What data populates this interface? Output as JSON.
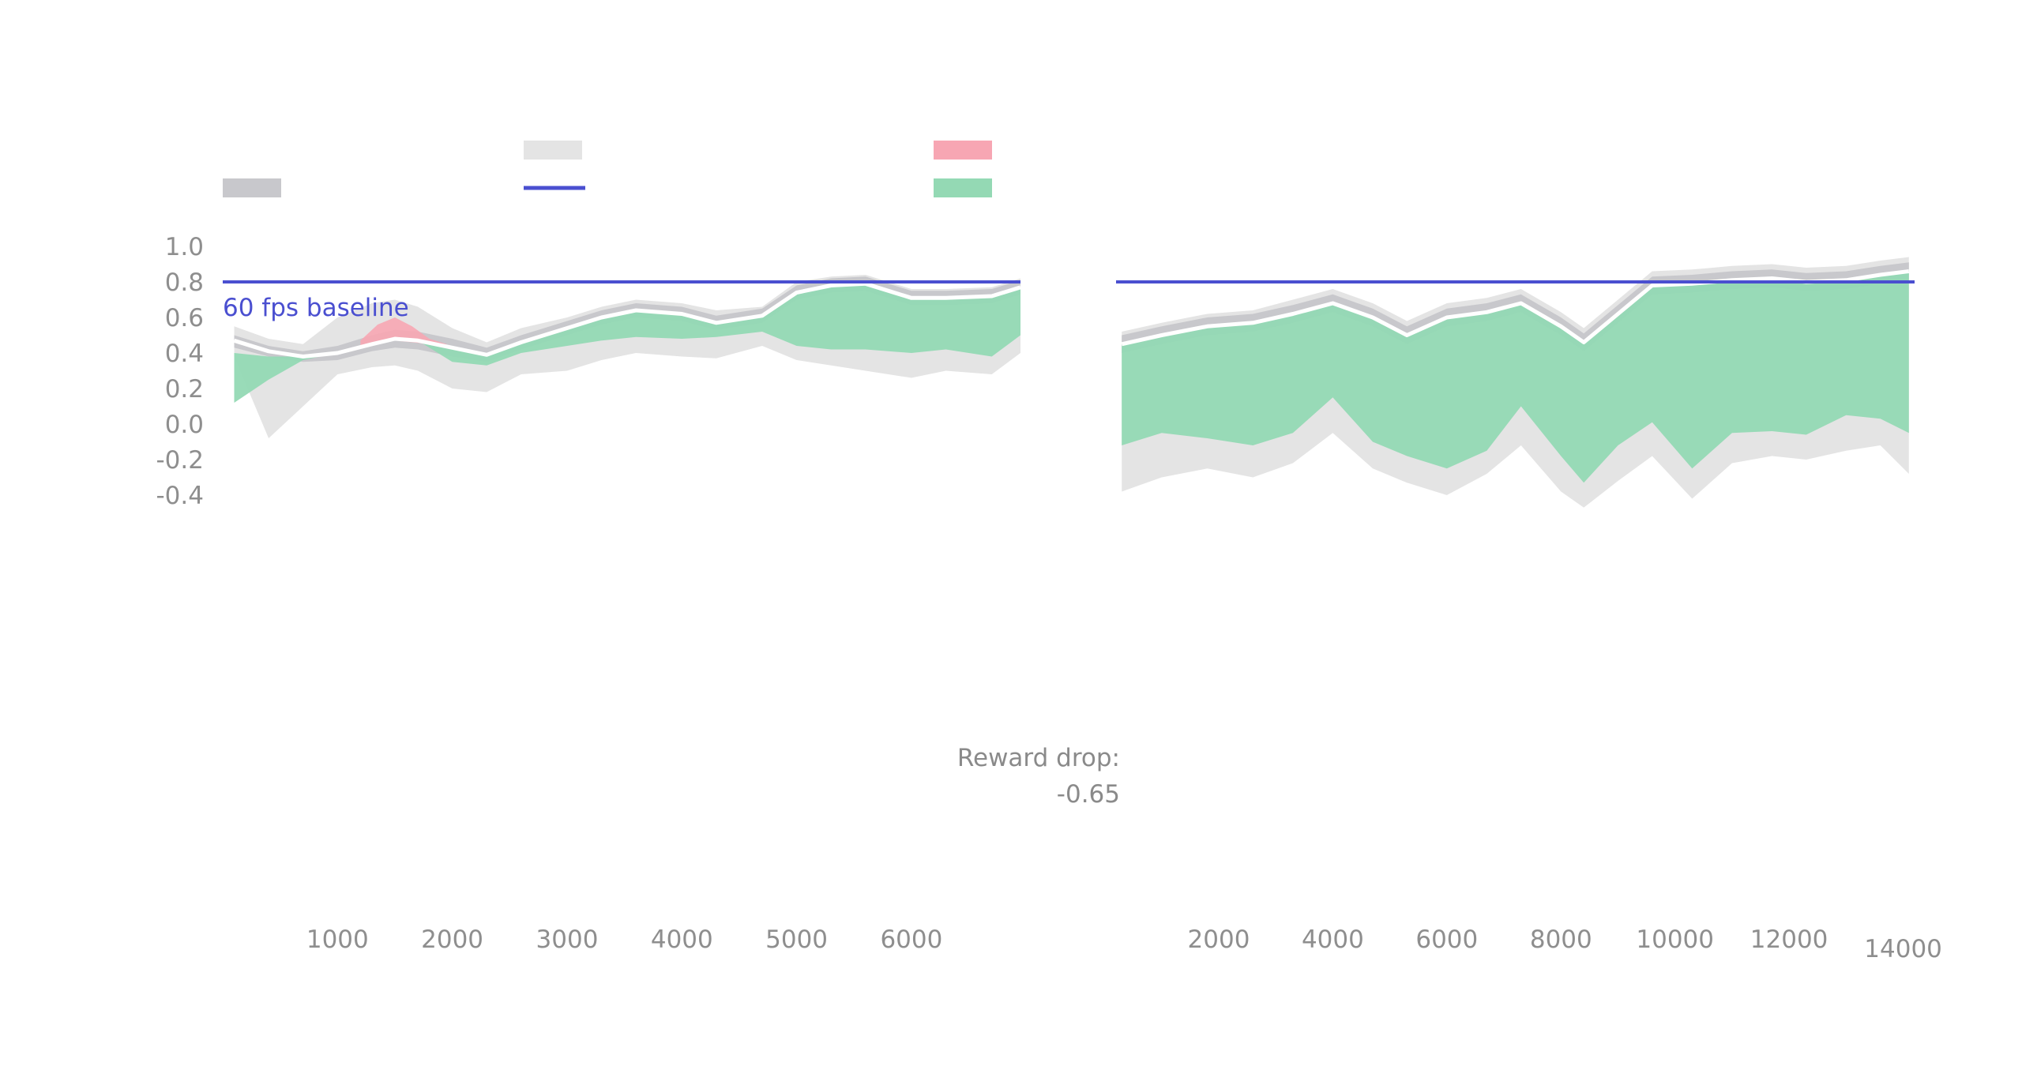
{
  "chart_data": [
    {
      "type": "area",
      "panel": "left",
      "xlim": [
        0,
        6950
      ],
      "ylim": [
        -0.5,
        1.0
      ],
      "x_ticks": [
        1000,
        2000,
        3000,
        4000,
        5000,
        6000
      ],
      "y_ticks": [
        1.0,
        0.8,
        0.6,
        0.4,
        0.2,
        0.0,
        -0.2,
        -0.4
      ],
      "baseline": {
        "label": "60 fps baseline",
        "value": 0.8,
        "color": "#4a4fd0"
      },
      "inline_label": "Rewa",
      "x": [
        100,
        400,
        700,
        1000,
        1300,
        1500,
        1700,
        2000,
        2300,
        2600,
        3000,
        3300,
        3600,
        4000,
        4300,
        4700,
        5000,
        5300,
        5600,
        6000,
        6300,
        6700,
        6950
      ],
      "mean": [
        0.47,
        0.41,
        0.38,
        0.4,
        0.45,
        0.48,
        0.47,
        0.43,
        0.39,
        0.46,
        0.54,
        0.6,
        0.64,
        0.62,
        0.57,
        0.61,
        0.74,
        0.78,
        0.79,
        0.71,
        0.71,
        0.72,
        0.77
      ],
      "band_inner": [
        [
          0.43,
          0.5
        ],
        [
          0.38,
          0.44
        ],
        [
          0.35,
          0.41
        ],
        [
          0.36,
          0.44
        ],
        [
          0.41,
          0.5
        ],
        [
          0.43,
          0.53
        ],
        [
          0.42,
          0.52
        ],
        [
          0.38,
          0.48
        ],
        [
          0.35,
          0.43
        ],
        [
          0.42,
          0.5
        ],
        [
          0.5,
          0.58
        ],
        [
          0.56,
          0.64
        ],
        [
          0.6,
          0.68
        ],
        [
          0.58,
          0.66
        ],
        [
          0.53,
          0.61
        ],
        [
          0.57,
          0.65
        ],
        [
          0.7,
          0.78
        ],
        [
          0.74,
          0.82
        ],
        [
          0.75,
          0.83
        ],
        [
          0.67,
          0.75
        ],
        [
          0.67,
          0.75
        ],
        [
          0.68,
          0.76
        ],
        [
          0.73,
          0.81
        ]
      ],
      "band_outer": [
        [
          0.38,
          0.55
        ],
        [
          -0.08,
          0.48
        ],
        [
          0.1,
          0.45
        ],
        [
          0.28,
          0.6
        ],
        [
          0.32,
          0.68
        ],
        [
          0.33,
          0.7
        ],
        [
          0.3,
          0.66
        ],
        [
          0.2,
          0.54
        ],
        [
          0.18,
          0.46
        ],
        [
          0.28,
          0.54
        ],
        [
          0.3,
          0.6
        ],
        [
          0.36,
          0.66
        ],
        [
          0.4,
          0.7
        ],
        [
          0.38,
          0.68
        ],
        [
          0.37,
          0.64
        ],
        [
          0.44,
          0.66
        ],
        [
          0.36,
          0.8
        ],
        [
          0.33,
          0.83
        ],
        [
          0.3,
          0.84
        ],
        [
          0.26,
          0.76
        ],
        [
          0.3,
          0.76
        ],
        [
          0.28,
          0.77
        ],
        [
          0.4,
          0.82
        ]
      ],
      "improvement": [
        [
          0.12,
          0.4
        ],
        [
          0.25,
          0.38
        ],
        [
          0.36,
          0.38
        ],
        [
          0.4,
          0.4
        ],
        [
          0.45,
          0.45
        ],
        [
          0.48,
          0.48
        ],
        [
          0.47,
          0.47
        ],
        [
          0.35,
          0.43
        ],
        [
          0.33,
          0.39
        ],
        [
          0.4,
          0.46
        ],
        [
          0.44,
          0.54
        ],
        [
          0.47,
          0.6
        ],
        [
          0.49,
          0.64
        ],
        [
          0.48,
          0.62
        ],
        [
          0.49,
          0.57
        ],
        [
          0.52,
          0.61
        ],
        [
          0.44,
          0.74
        ],
        [
          0.42,
          0.78
        ],
        [
          0.42,
          0.79
        ],
        [
          0.4,
          0.71
        ],
        [
          0.42,
          0.71
        ],
        [
          0.38,
          0.72
        ],
        [
          0.5,
          0.77
        ]
      ],
      "regression_x": [
        1200,
        1350,
        1500,
        1650,
        1800,
        1950
      ],
      "regression": [
        [
          0.44,
          0.47
        ],
        [
          0.45,
          0.56
        ],
        [
          0.47,
          0.6
        ],
        [
          0.46,
          0.55
        ],
        [
          0.45,
          0.48
        ],
        [
          0.44,
          0.45
        ]
      ]
    },
    {
      "type": "area",
      "panel": "right",
      "xlim": [
        200,
        14200
      ],
      "ylim": [
        -0.5,
        1.0
      ],
      "x_ticks": [
        2000,
        4000,
        6000,
        8000,
        10000,
        12000,
        14000
      ],
      "baseline": {
        "value": 0.8,
        "color": "#4a4fd0"
      },
      "annotation": {
        "label": "Reward drop:",
        "value": "-0.65"
      },
      "x": [
        300,
        1000,
        1800,
        2600,
        3300,
        4000,
        4700,
        5300,
        6000,
        6700,
        7300,
        8000,
        8400,
        9000,
        9600,
        10300,
        11000,
        11700,
        12300,
        13000,
        13600,
        14100
      ],
      "mean": [
        0.45,
        0.5,
        0.55,
        0.57,
        0.62,
        0.68,
        0.6,
        0.5,
        0.6,
        0.63,
        0.68,
        0.55,
        0.46,
        0.62,
        0.78,
        0.79,
        0.81,
        0.82,
        0.8,
        0.81,
        0.84,
        0.86
      ],
      "band_inner": [
        [
          0.4,
          0.5
        ],
        [
          0.45,
          0.55
        ],
        [
          0.5,
          0.6
        ],
        [
          0.52,
          0.62
        ],
        [
          0.57,
          0.67
        ],
        [
          0.63,
          0.73
        ],
        [
          0.55,
          0.65
        ],
        [
          0.45,
          0.55
        ],
        [
          0.55,
          0.65
        ],
        [
          0.58,
          0.68
        ],
        [
          0.63,
          0.73
        ],
        [
          0.5,
          0.6
        ],
        [
          0.41,
          0.51
        ],
        [
          0.57,
          0.67
        ],
        [
          0.73,
          0.83
        ],
        [
          0.74,
          0.84
        ],
        [
          0.76,
          0.86
        ],
        [
          0.77,
          0.87
        ],
        [
          0.75,
          0.85
        ],
        [
          0.76,
          0.86
        ],
        [
          0.79,
          0.89
        ],
        [
          0.81,
          0.91
        ]
      ],
      "band_outer": [
        [
          -0.38,
          0.52
        ],
        [
          -0.3,
          0.57
        ],
        [
          -0.25,
          0.62
        ],
        [
          -0.3,
          0.64
        ],
        [
          -0.22,
          0.7
        ],
        [
          -0.05,
          0.76
        ],
        [
          -0.25,
          0.68
        ],
        [
          -0.33,
          0.58
        ],
        [
          -0.4,
          0.68
        ],
        [
          -0.28,
          0.71
        ],
        [
          -0.12,
          0.76
        ],
        [
          -0.38,
          0.63
        ],
        [
          -0.47,
          0.54
        ],
        [
          -0.32,
          0.7
        ],
        [
          -0.18,
          0.86
        ],
        [
          -0.42,
          0.87
        ],
        [
          -0.22,
          0.89
        ],
        [
          -0.18,
          0.9
        ],
        [
          -0.2,
          0.88
        ],
        [
          -0.15,
          0.89
        ],
        [
          -0.12,
          0.92
        ],
        [
          -0.28,
          0.94
        ]
      ],
      "improvement": [
        [
          -0.12,
          0.45
        ],
        [
          -0.05,
          0.5
        ],
        [
          -0.08,
          0.55
        ],
        [
          -0.12,
          0.57
        ],
        [
          -0.05,
          0.62
        ],
        [
          0.15,
          0.68
        ],
        [
          -0.1,
          0.6
        ],
        [
          -0.18,
          0.5
        ],
        [
          -0.25,
          0.6
        ],
        [
          -0.15,
          0.63
        ],
        [
          0.1,
          0.68
        ],
        [
          -0.18,
          0.55
        ],
        [
          -0.33,
          0.46
        ],
        [
          -0.12,
          0.62
        ],
        [
          0.01,
          0.78
        ],
        [
          -0.25,
          0.79
        ],
        [
          -0.05,
          0.81
        ],
        [
          -0.04,
          0.82
        ],
        [
          -0.06,
          0.8
        ],
        [
          0.05,
          0.81
        ],
        [
          0.03,
          0.84
        ],
        [
          -0.05,
          0.86
        ]
      ]
    }
  ],
  "legend": {
    "placement": "top",
    "entries": [
      {
        "swatch": "band-dark",
        "color": "#c8c8cc",
        "label": ""
      },
      {
        "swatch": "band-light",
        "color": "#e4e4e4",
        "label": ""
      },
      {
        "swatch": "baseline-line",
        "color": "#4a4fd0",
        "label": ""
      },
      {
        "swatch": "regression",
        "color": "#f7a6b3",
        "label": ""
      },
      {
        "swatch": "improvement",
        "color": "#94d9b4",
        "label": ""
      }
    ]
  },
  "colors": {
    "band_light": "#e4e4e4",
    "band_dark": "#c8c8cc",
    "improvement": "#94d9b4",
    "improvement_dark": "#7cc49c",
    "regression": "#f7a6b3",
    "regression_dark": "#e6708a",
    "baseline": "#4a4fd0",
    "mean_line": "#ffffff"
  }
}
